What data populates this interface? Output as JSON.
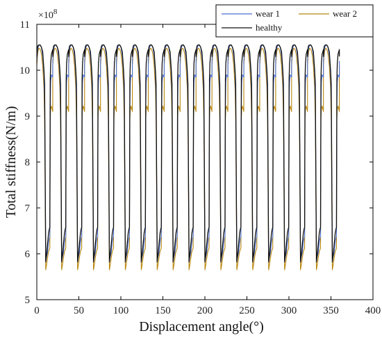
{
  "chart_data": {
    "type": "line",
    "title": "",
    "xlabel": "Displacement angle(°)",
    "ylabel": "Total stiffness(N/m)",
    "y_multiplier_label": "×10",
    "y_multiplier_exponent": "8",
    "xlim": [
      0,
      400
    ],
    "ylim": [
      5,
      11
    ],
    "xticks": [
      "0",
      "50",
      "100",
      "150",
      "200",
      "250",
      "300",
      "350",
      "400"
    ],
    "yticks": [
      "5",
      "6",
      "7",
      "8",
      "9",
      "10",
      "11"
    ],
    "grid": false,
    "legend_position": "top-right",
    "period_deg": 18.947,
    "x_end": 360,
    "series": [
      {
        "name": "wear 1",
        "color": "#4a6fd0",
        "profile_x": [
          0,
          0.75,
          1.5,
          2.5,
          4,
          5.5,
          7,
          8.5,
          9.3,
          10.6,
          11.5,
          12.7,
          14,
          15,
          15.5,
          16,
          16.5,
          17.4,
          18.947
        ],
        "profile_y": [
          10.2,
          10.4,
          10.49,
          10.54,
          10.55,
          10.5,
          10.3,
          9.9,
          9.3,
          6.05,
          5.93,
          6.02,
          6.25,
          6.35,
          6.37,
          9.25,
          9.75,
          9.9,
          9.85
        ]
      },
      {
        "name": "wear 2",
        "color": "#b8860b",
        "profile_x": [
          0,
          0.75,
          1.5,
          2.5,
          4,
          5.5,
          7,
          8.5,
          9.3,
          10.6,
          11.5,
          12.7,
          14,
          15,
          15.5,
          16,
          16.5,
          17.4,
          18.947
        ],
        "profile_y": [
          10.1,
          10.3,
          10.42,
          10.48,
          10.46,
          10.35,
          10.1,
          9.6,
          8.9,
          5.65,
          5.75,
          5.9,
          6.05,
          6.1,
          6.12,
          8.95,
          9.15,
          9.22,
          9.1
        ]
      },
      {
        "name": "healthy",
        "color": "#111111",
        "profile_x": [
          0,
          0.75,
          1.5,
          2.5,
          4,
          5.5,
          7,
          8.5,
          9.3,
          10.6,
          11.5,
          12.7,
          14,
          15,
          15.5,
          16,
          16.5,
          17.4,
          18.947
        ],
        "profile_y": [
          10.3,
          10.5,
          10.54,
          10.55,
          10.55,
          10.5,
          10.4,
          10.0,
          9.7,
          5.82,
          5.95,
          6.2,
          6.45,
          6.55,
          6.57,
          9.8,
          10.15,
          10.35,
          10.45
        ]
      }
    ]
  }
}
